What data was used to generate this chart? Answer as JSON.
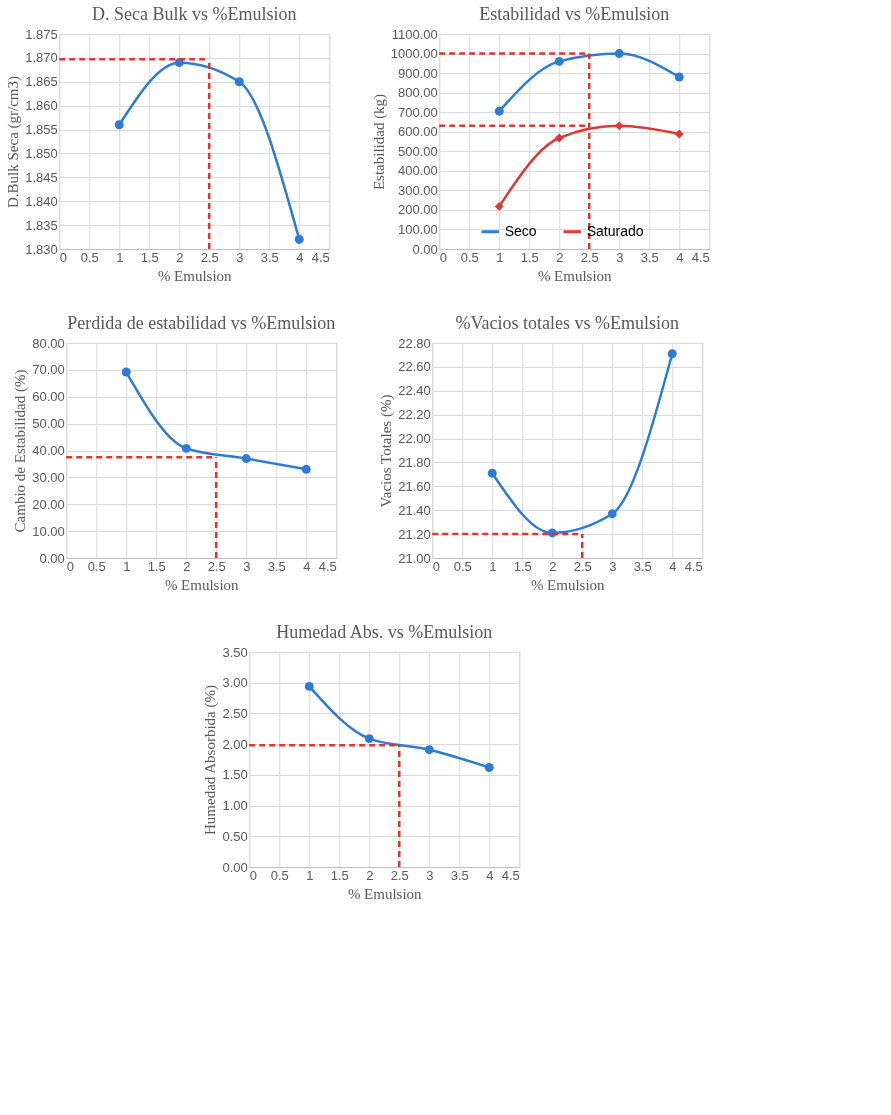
{
  "chart_data": [
    {
      "type": "line",
      "title": "D. Seca Bulk vs %Emulsion",
      "xlabel": "% Emulsion",
      "ylabel": "D.Bulk Seca (gr/cm3)",
      "x": [
        1,
        2,
        3,
        4
      ],
      "series": [
        {
          "color": "#2e7bd6",
          "values": [
            1.856,
            1.869,
            1.865,
            1.832
          ]
        }
      ],
      "xlim": [
        0,
        4.5
      ],
      "xticks": [
        0,
        0.5,
        1,
        1.5,
        2,
        2.5,
        3,
        3.5,
        4,
        4.5
      ],
      "ylim": [
        1.83,
        1.875
      ],
      "yticks": [
        {
          "value": 1.83,
          "label": "1.830"
        },
        {
          "value": 1.835,
          "label": "1.835"
        },
        {
          "value": 1.84,
          "label": "1.840"
        },
        {
          "value": 1.845,
          "label": "1.845"
        },
        {
          "value": 1.85,
          "label": "1.850"
        },
        {
          "value": 1.855,
          "label": "1.855"
        },
        {
          "value": 1.86,
          "label": "1.860"
        },
        {
          "value": 1.865,
          "label": "1.865"
        },
        {
          "value": 1.87,
          "label": "1.870"
        },
        {
          "value": 1.875,
          "label": "1.875"
        }
      ],
      "ref_lines": [
        {
          "axis": "y",
          "value": 1.8697,
          "color": "#e0342f",
          "line_style": "dashed"
        },
        {
          "axis": "x",
          "value": 2.5,
          "color": "#e0342f",
          "line_style": "dashed"
        }
      ],
      "grid": true,
      "marker": "circle",
      "line_style": "solid"
    },
    {
      "type": "line",
      "title": "Estabilidad  vs %Emulsion",
      "xlabel": "% Emulsion",
      "ylabel": "Estabilidad  (kg)",
      "x": [
        1,
        2,
        3,
        4
      ],
      "series": [
        {
          "name": "Seco",
          "color": "#2e7bd6",
          "marker": "circle",
          "values": [
            705,
            960,
            1000,
            880
          ]
        },
        {
          "name": "Saturado",
          "color": "#d93a35",
          "marker": "diamond",
          "values": [
            218,
            568,
            630,
            588
          ]
        }
      ],
      "xlim": [
        0,
        4.5
      ],
      "xticks": [
        0,
        0.5,
        1,
        1.5,
        2,
        2.5,
        3,
        3.5,
        4,
        4.5
      ],
      "ylim": [
        0,
        1100
      ],
      "yticks": [
        {
          "value": 0,
          "label": "0.00"
        },
        {
          "value": 100,
          "label": "100.00"
        },
        {
          "value": 200,
          "label": "200.00"
        },
        {
          "value": 300,
          "label": "300.00"
        },
        {
          "value": 400,
          "label": "400.00"
        },
        {
          "value": 500,
          "label": "500.00"
        },
        {
          "value": 600,
          "label": "600.00"
        },
        {
          "value": 700,
          "label": "700.00"
        },
        {
          "value": 800,
          "label": "800.00"
        },
        {
          "value": 900,
          "label": "900.00"
        },
        {
          "value": 1000,
          "label": "1000.00"
        },
        {
          "value": 1100,
          "label": "1100.00"
        }
      ],
      "ref_lines": [
        {
          "axis": "y",
          "value": 1000,
          "color": "#e0342f",
          "line_style": "dashed"
        },
        {
          "axis": "y",
          "value": 630,
          "color": "#e0342f",
          "line_style": "dashed"
        },
        {
          "axis": "x",
          "value": 2.5,
          "color": "#e0342f",
          "line_style": "dashed"
        }
      ],
      "grid": true,
      "legend": "bottom",
      "marker": "circle",
      "line_style": "solid"
    },
    {
      "type": "line",
      "title": "Perdida de estabilidad vs %Emulsion",
      "xlabel": "% Emulsion",
      "ylabel": "Cambio de Estabilidad (%)",
      "x": [
        1,
        2,
        3,
        4
      ],
      "series": [
        {
          "color": "#2e7bd6",
          "values": [
            69.2,
            40.8,
            37.0,
            33.0
          ]
        }
      ],
      "xlim": [
        0,
        4.5
      ],
      "xticks": [
        0,
        0.5,
        1,
        1.5,
        2,
        2.5,
        3,
        3.5,
        4,
        4.5
      ],
      "ylim": [
        0,
        80
      ],
      "yticks": [
        {
          "value": 0,
          "label": "0.00"
        },
        {
          "value": 10,
          "label": "10.00"
        },
        {
          "value": 20,
          "label": "20.00"
        },
        {
          "value": 30,
          "label": "30.00"
        },
        {
          "value": 40,
          "label": "40.00"
        },
        {
          "value": 50,
          "label": "50.00"
        },
        {
          "value": 60,
          "label": "60.00"
        },
        {
          "value": 70,
          "label": "70.00"
        },
        {
          "value": 80,
          "label": "80.00"
        }
      ],
      "ref_lines": [
        {
          "axis": "y",
          "value": 37.5,
          "color": "#e0342f",
          "line_style": "dashed"
        },
        {
          "axis": "x",
          "value": 2.5,
          "color": "#e0342f",
          "line_style": "dashed"
        }
      ],
      "grid": true,
      "marker": "circle",
      "line_style": "solid"
    },
    {
      "type": "line",
      "title": "%Vacios totales vs %Emulsion",
      "xlabel": "% Emulsion",
      "ylabel": "Vacios Totales (%)",
      "x": [
        1,
        2,
        3,
        4
      ],
      "series": [
        {
          "color": "#2e7bd6",
          "values": [
            21.71,
            21.21,
            21.37,
            22.71
          ]
        }
      ],
      "xlim": [
        0,
        4.5
      ],
      "xticks": [
        0,
        0.5,
        1,
        1.5,
        2,
        2.5,
        3,
        3.5,
        4,
        4.5
      ],
      "ylim": [
        21.0,
        22.8
      ],
      "yticks": [
        {
          "value": 21.0,
          "label": "21.00"
        },
        {
          "value": 21.2,
          "label": "21.20"
        },
        {
          "value": 21.4,
          "label": "21.40"
        },
        {
          "value": 21.6,
          "label": "21.60"
        },
        {
          "value": 21.8,
          "label": "21.80"
        },
        {
          "value": 22.0,
          "label": "22.00"
        },
        {
          "value": 22.2,
          "label": "22.20"
        },
        {
          "value": 22.4,
          "label": "22.40"
        },
        {
          "value": 22.6,
          "label": "22.60"
        },
        {
          "value": 22.8,
          "label": "22.80"
        }
      ],
      "ref_lines": [
        {
          "axis": "y",
          "value": 21.2,
          "color": "#e0342f",
          "line_style": "dashed"
        },
        {
          "axis": "x",
          "value": 2.5,
          "color": "#e0342f",
          "line_style": "dashed"
        }
      ],
      "grid": true,
      "marker": "circle",
      "line_style": "solid"
    },
    {
      "type": "line",
      "title": "Humedad Abs. vs %Emulsion",
      "xlabel": "% Emulsion",
      "ylabel": "Humedad Absorbida (%)",
      "x": [
        1,
        2,
        3,
        4
      ],
      "series": [
        {
          "color": "#2e7bd6",
          "values": [
            2.94,
            2.09,
            1.91,
            1.62
          ]
        }
      ],
      "xlim": [
        0,
        4.5
      ],
      "xticks": [
        0,
        0.5,
        1,
        1.5,
        2,
        2.5,
        3,
        3.5,
        4,
        4.5
      ],
      "ylim": [
        0,
        3.5
      ],
      "yticks": [
        {
          "value": 0,
          "label": "0.00"
        },
        {
          "value": 0.5,
          "label": "0.50"
        },
        {
          "value": 1.0,
          "label": "1.00"
        },
        {
          "value": 1.5,
          "label": "1.50"
        },
        {
          "value": 2.0,
          "label": "2.00"
        },
        {
          "value": 2.5,
          "label": "2.50"
        },
        {
          "value": 3.0,
          "label": "3.00"
        },
        {
          "value": 3.5,
          "label": "3.50"
        }
      ],
      "ref_lines": [
        {
          "axis": "y",
          "value": 1.98,
          "color": "#e0342f",
          "line_style": "dashed"
        },
        {
          "axis": "x",
          "value": 2.5,
          "color": "#e0342f",
          "line_style": "dashed"
        }
      ],
      "grid": true,
      "marker": "circle",
      "line_style": "solid"
    }
  ]
}
